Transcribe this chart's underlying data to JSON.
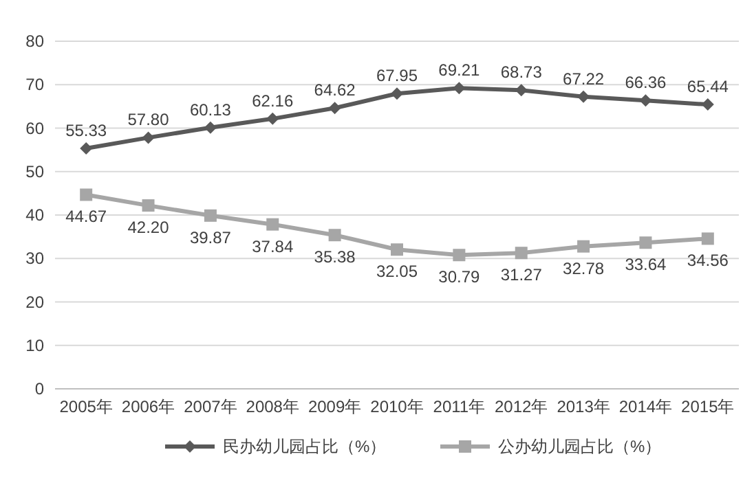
{
  "chart_data": {
    "type": "line",
    "categories": [
      "2005年",
      "2006年",
      "2007年",
      "2008年",
      "2009年",
      "2010年",
      "2011年",
      "2012年",
      "2013年",
      "2014年",
      "2015年"
    ],
    "series": [
      {
        "name": "民办幼儿园占比（%）",
        "color": "#595959",
        "marker": "diamond",
        "values": [
          55.33,
          57.8,
          60.13,
          62.16,
          64.62,
          67.95,
          69.21,
          68.73,
          67.22,
          66.36,
          65.44
        ],
        "value_labels": [
          "55.33",
          "57.80",
          "60.13",
          "62.16",
          "64.62",
          "67.95",
          "69.21",
          "68.73",
          "67.22",
          "66.36",
          "65.44"
        ]
      },
      {
        "name": "公办幼儿园占比（%）",
        "color": "#a6a6a6",
        "marker": "square",
        "values": [
          44.67,
          42.2,
          39.87,
          37.84,
          35.38,
          32.05,
          30.79,
          31.27,
          32.78,
          33.64,
          34.56
        ],
        "value_labels": [
          "44.67",
          "42.20",
          "39.87",
          "37.84",
          "35.38",
          "32.05",
          "30.79",
          "31.27",
          "32.78",
          "33.64",
          "34.56"
        ]
      }
    ],
    "ylim": [
      0,
      80
    ],
    "yticks": [
      0,
      10,
      20,
      30,
      40,
      50,
      60,
      70,
      80
    ],
    "grid": "y",
    "legend": "bottom",
    "line_style": "solid"
  }
}
